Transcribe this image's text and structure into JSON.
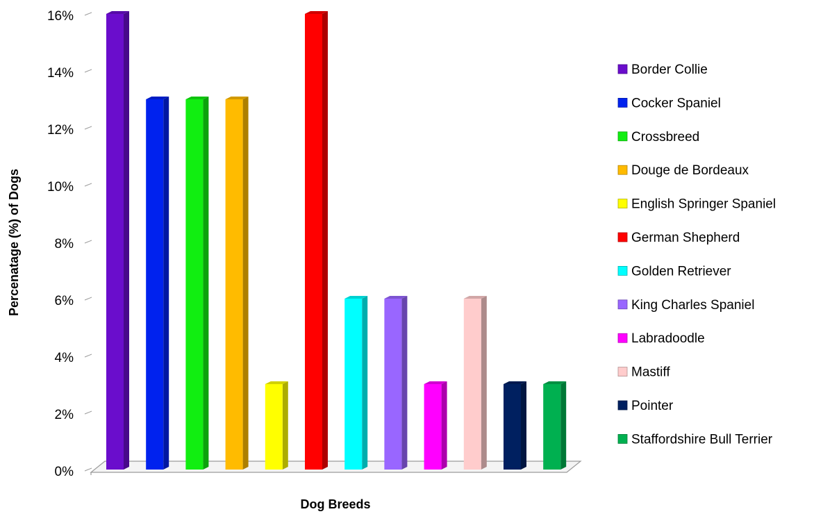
{
  "chart_data": {
    "type": "bar",
    "title": "",
    "xlabel": "Dog Breeds",
    "ylabel": "Percenatage (%) of Dogs",
    "ylim": [
      0,
      16
    ],
    "yticks": [
      "0%",
      "2%",
      "4%",
      "6%",
      "8%",
      "10%",
      "12%",
      "14%",
      "16%"
    ],
    "grid": false,
    "legend_position": "right",
    "series": [
      {
        "name": "Border Collie",
        "value": 16,
        "color": "#6A0DCC"
      },
      {
        "name": "Cocker Spaniel",
        "value": 13,
        "color": "#0022EE"
      },
      {
        "name": "Crossbreed",
        "value": 13,
        "color": "#11EE11"
      },
      {
        "name": "Douge de Bordeaux",
        "value": 13,
        "color": "#FFBB00"
      },
      {
        "name": "English Springer Spaniel",
        "value": 3,
        "color": "#FFFF00"
      },
      {
        "name": "German Shepherd",
        "value": 16,
        "color": "#FF0000"
      },
      {
        "name": "Golden Retriever",
        "value": 6,
        "color": "#00FFFF"
      },
      {
        "name": "King Charles Spaniel",
        "value": 6,
        "color": "#9966FF"
      },
      {
        "name": "Labradoodle",
        "value": 3,
        "color": "#FF00FF"
      },
      {
        "name": "Mastiff",
        "value": 6,
        "color": "#FFCCCC"
      },
      {
        "name": "Pointer",
        "value": 3,
        "color": "#002060"
      },
      {
        "name": "Staffordshire Bull Terrier",
        "value": 3,
        "color": "#00B050"
      }
    ]
  }
}
